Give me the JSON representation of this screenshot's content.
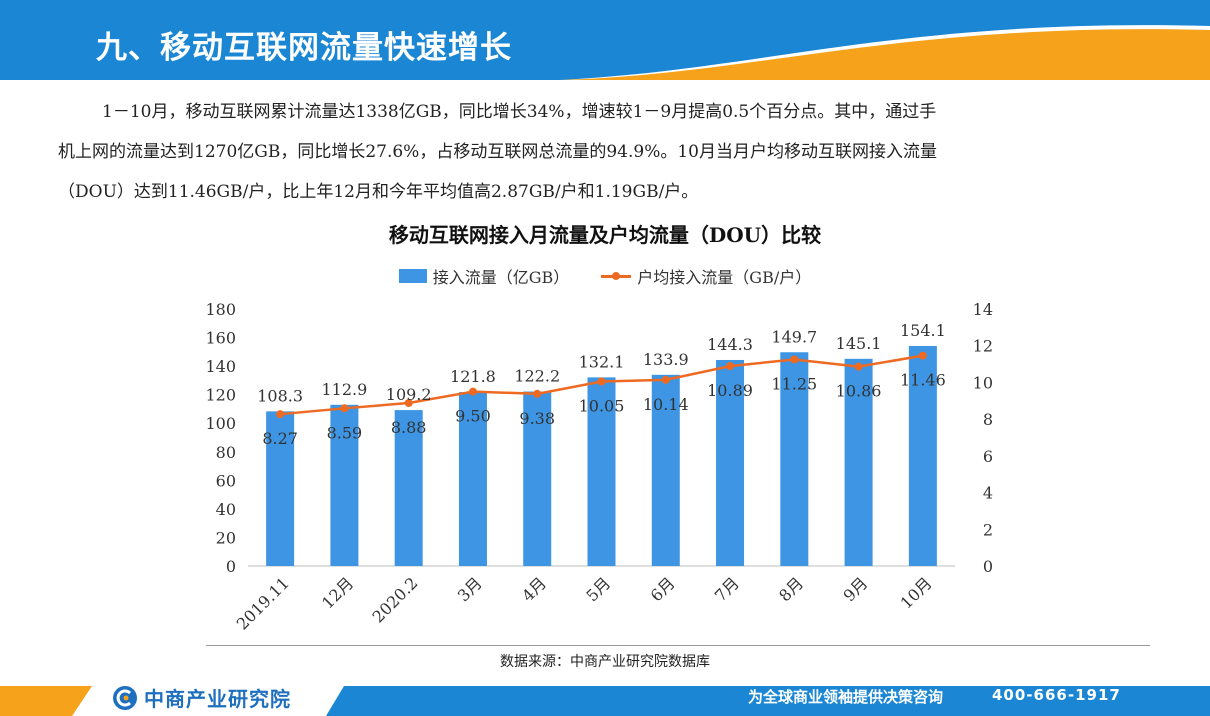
{
  "header": {
    "title": "九、移动互联网流量快速增长"
  },
  "paragraph": {
    "line1": "1－10月，移动互联网累计流量达1338亿GB，同比增长34%，增速较1－9月提高0.5个百分点。其中，通过手",
    "line2": "机上网的流量达到1270亿GB，同比增长27.6%，占移动互联网总流量的94.9%。10月当月户均移动互联网接入流量",
    "line3": "（DOU）达到11.46GB/户，比上年12月和今年平均值高2.87GB/户和1.19GB/户。"
  },
  "chart_data": {
    "type": "bar",
    "title": "移动互联网接入月流量及户均流量（DOU）比较",
    "categories": [
      "2019.11",
      "12月",
      "2020.2",
      "3月",
      "4月",
      "5月",
      "6月",
      "7月",
      "8月",
      "9月",
      "10月"
    ],
    "series": [
      {
        "name": "接入流量（亿GB）",
        "type": "bar",
        "axis": "left",
        "values": [
          108.3,
          112.9,
          109.2,
          121.8,
          122.2,
          132.1,
          133.9,
          144.3,
          149.7,
          145.1,
          154.1
        ],
        "labels": [
          "108.3",
          "112.9",
          "109.2",
          "121.8",
          "122.2",
          "132.1",
          "133.9",
          "144.3",
          "149.7",
          "145.1",
          "154.1"
        ],
        "color": "#3d95e3"
      },
      {
        "name": "户均接入流量（GB/户）",
        "type": "line",
        "axis": "right",
        "values": [
          8.27,
          8.59,
          8.88,
          9.5,
          9.38,
          10.05,
          10.14,
          10.89,
          11.25,
          10.86,
          11.46
        ],
        "labels": [
          "8.27",
          "8.59",
          "8.88",
          "9.50",
          "9.38",
          "10.05",
          "10.14",
          "10.89",
          "11.25",
          "10.86",
          "11.46"
        ],
        "color": "#ee6a22"
      }
    ],
    "y_left": {
      "min": 0,
      "max": 180,
      "ticks": [
        "0",
        "20",
        "40",
        "60",
        "80",
        "100",
        "120",
        "140",
        "160",
        "180"
      ]
    },
    "y_right": {
      "min": 0,
      "max": 14,
      "ticks": [
        "0",
        "2",
        "4",
        "6",
        "8",
        "10",
        "12",
        "14"
      ]
    },
    "grid": false,
    "legend_position": "top-center"
  },
  "source": {
    "text": "数据来源：中商产业研究院数据库"
  },
  "footer": {
    "logo_text": "中商产业研究院",
    "slogan": "为全球商业领袖提供决策咨询",
    "phone": "400-666-1917"
  },
  "colors": {
    "header_blue": "#1b87d4",
    "header_orange": "#f7a21b",
    "footer_blue": "#1b87d4",
    "footer_orange": "#f7a21b"
  }
}
